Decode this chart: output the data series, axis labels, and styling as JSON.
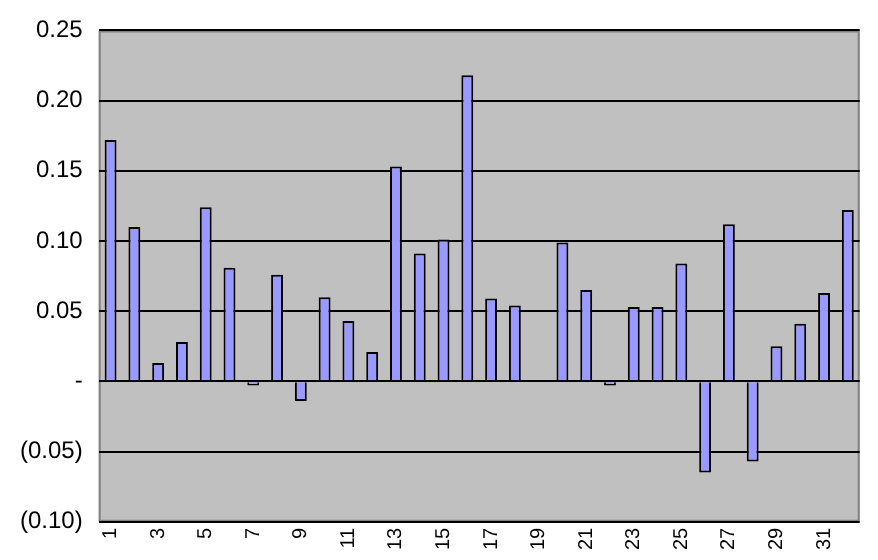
{
  "chart_data": {
    "type": "bar",
    "categories": [
      "1",
      null,
      "3",
      null,
      "5",
      null,
      "7",
      null,
      "9",
      null,
      "11",
      null,
      "13",
      null,
      "15",
      null,
      "17",
      null,
      "19",
      null,
      "21",
      null,
      "23",
      null,
      "25",
      null,
      "27",
      null,
      "29",
      null,
      "31",
      null
    ],
    "values": [
      0.172,
      0.11,
      0.013,
      0.028,
      0.124,
      0.081,
      -0.003,
      0.076,
      -0.014,
      0.06,
      0.043,
      0.021,
      0.153,
      0.091,
      0.101,
      0.218,
      0.059,
      0.054,
      null,
      0.099,
      0.065,
      -0.003,
      0.053,
      0.053,
      0.084,
      -0.065,
      0.112,
      -0.057,
      0.025,
      0.041,
      0.063,
      0.122
    ],
    "color": "#9999ff",
    "ylim": [
      -0.1,
      0.25
    ],
    "yticks": [
      {
        "value": -0.1,
        "label": "(0.10)"
      },
      {
        "value": -0.05,
        "label": "(0.05)"
      },
      {
        "value": 0,
        "label": "-"
      },
      0.05,
      {
        "value": 0.1,
        "label": "0.10"
      },
      0.15,
      {
        "value": 0.2,
        "label": "0.20"
      },
      0.25
    ],
    "grid": "y",
    "legend": false
  }
}
